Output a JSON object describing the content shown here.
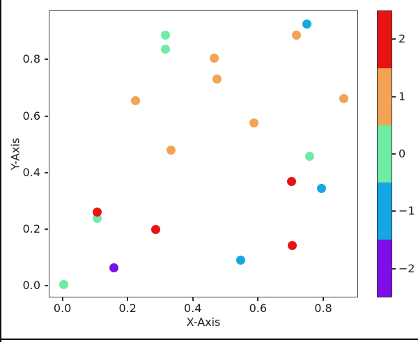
{
  "chart_data": {
    "type": "scatter",
    "title": "",
    "xlabel": "X-Axis",
    "ylabel": "Y-Axis",
    "xlim": [
      -0.042,
      0.907
    ],
    "ylim": [
      -0.041,
      0.973
    ],
    "grid": false,
    "x_ticks": [
      0.0,
      0.2,
      0.4,
      0.6,
      0.8
    ],
    "x_tick_labels": [
      "0.0",
      "0.2",
      "0.4",
      "0.6",
      "0.8"
    ],
    "y_ticks": [
      0.0,
      0.2,
      0.4,
      0.6,
      0.8
    ],
    "y_tick_labels": [
      "0.0",
      "0.2",
      "0.4",
      "0.6",
      "0.8"
    ],
    "points": [
      {
        "x": 0.001,
        "y": 0.006,
        "v": 0
      },
      {
        "x": 0.104,
        "y": 0.24,
        "v": 0
      },
      {
        "x": 0.104,
        "y": 0.262,
        "v": 2
      },
      {
        "x": 0.155,
        "y": 0.066,
        "v": -2
      },
      {
        "x": 0.222,
        "y": 0.657,
        "v": 1
      },
      {
        "x": 0.284,
        "y": 0.202,
        "v": 2
      },
      {
        "x": 0.314,
        "y": 0.84,
        "v": 0
      },
      {
        "x": 0.314,
        "y": 0.887,
        "v": 0
      },
      {
        "x": 0.33,
        "y": 0.483,
        "v": 1
      },
      {
        "x": 0.464,
        "y": 0.807,
        "v": 1
      },
      {
        "x": 0.471,
        "y": 0.733,
        "v": 1
      },
      {
        "x": 0.544,
        "y": 0.092,
        "v": -1
      },
      {
        "x": 0.586,
        "y": 0.579,
        "v": 1
      },
      {
        "x": 0.7,
        "y": 0.372,
        "v": 2
      },
      {
        "x": 0.703,
        "y": 0.144,
        "v": 2
      },
      {
        "x": 0.715,
        "y": 0.887,
        "v": 1
      },
      {
        "x": 0.748,
        "y": 0.928,
        "v": -1
      },
      {
        "x": 0.757,
        "y": 0.459,
        "v": 0
      },
      {
        "x": 0.792,
        "y": 0.347,
        "v": -1
      },
      {
        "x": 0.862,
        "y": 0.665,
        "v": 1
      }
    ],
    "colormap": {
      "2": "#e81313",
      "1": "#f3a354",
      "0": "#6feba6",
      "-1": "#14a7e3",
      "-2": "#7c0fe8"
    },
    "colorbar": {
      "values_top_to_bottom": [
        2,
        1,
        0,
        -1,
        -2
      ],
      "tick_labels_top_to_bottom": [
        "2",
        "1",
        "0",
        "−1",
        "−2"
      ],
      "position": "right"
    },
    "legend": null,
    "marker_diameter_px": 13
  },
  "frame": {
    "background": "#ffffff",
    "spine_color": "#3a3a3a",
    "border_color": "#111111"
  }
}
